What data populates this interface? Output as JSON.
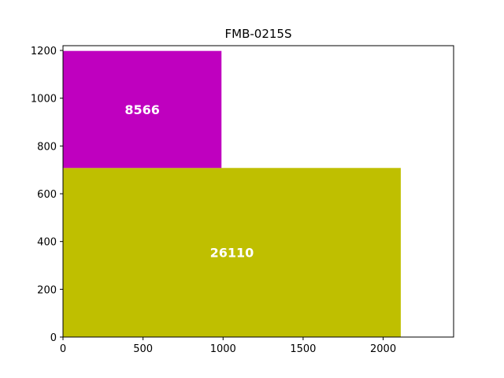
{
  "chart_data": {
    "type": "treemap",
    "title": "FMB-0215S",
    "xlabel": "",
    "ylabel": "",
    "xlim": [
      0,
      2440
    ],
    "ylim": [
      0,
      1220
    ],
    "x_ticks": [
      0,
      500,
      1000,
      1500,
      2000
    ],
    "y_ticks": [
      0,
      200,
      400,
      600,
      800,
      1000,
      1200
    ],
    "rectangles": [
      {
        "label": "26110",
        "x": 0,
        "y": 0,
        "w": 2110,
        "h": 708,
        "color": "#bfbf00"
      },
      {
        "label": "8566",
        "x": 0,
        "y": 708,
        "w": 990,
        "h": 490,
        "color": "#bf00bf"
      }
    ],
    "grid": false,
    "legend": "none"
  }
}
